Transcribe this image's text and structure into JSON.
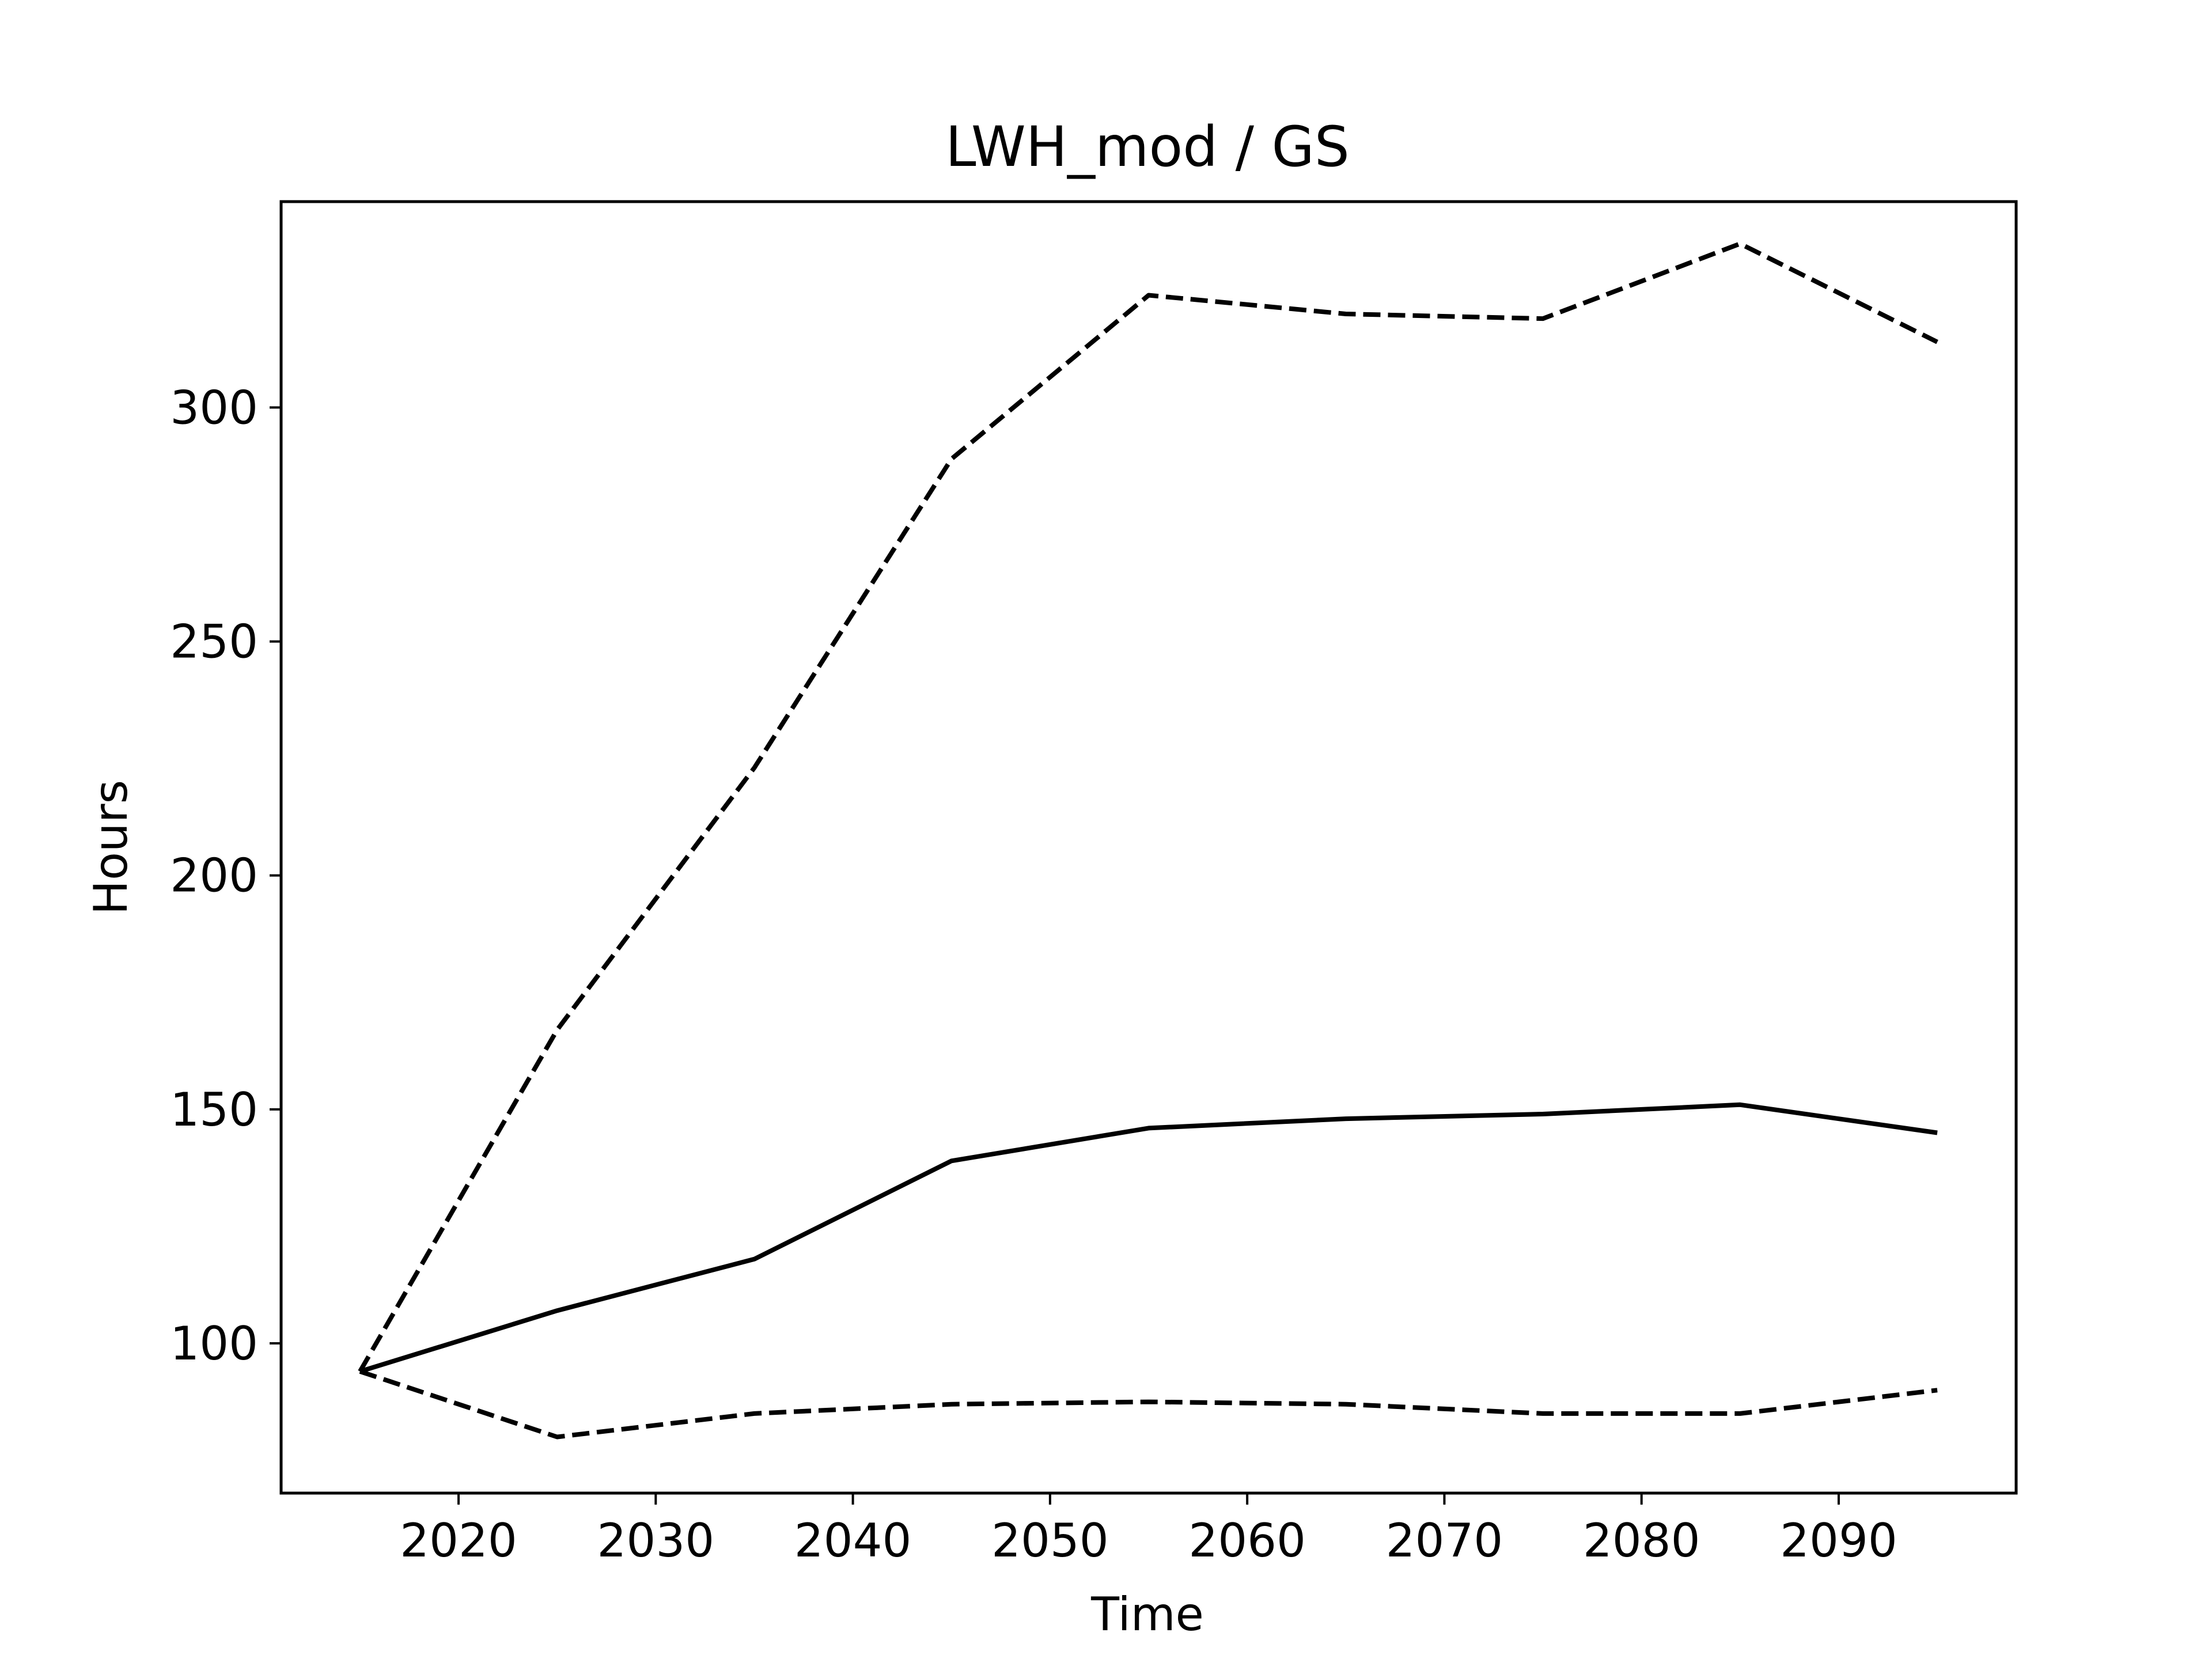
{
  "chart_data": {
    "type": "line",
    "title": "LWH_mod / GS",
    "xlabel": "Time",
    "ylabel": "Hours",
    "xlim": [
      2011,
      2099
    ],
    "ylim": [
      68,
      344
    ],
    "xticks": [
      2020,
      2030,
      2040,
      2050,
      2060,
      2070,
      2080,
      2090
    ],
    "yticks": [
      100,
      150,
      200,
      250,
      300
    ],
    "grid": false,
    "legend": false,
    "x": [
      2015,
      2025,
      2035,
      2045,
      2055,
      2065,
      2075,
      2085,
      2095
    ],
    "series": [
      {
        "style": "solid",
        "color": "#000000",
        "values": [
          94,
          107,
          118,
          139,
          146,
          148,
          149,
          151,
          145
        ]
      },
      {
        "style": "dashed",
        "color": "#000000",
        "values": [
          94,
          167,
          223,
          289,
          324,
          320,
          319,
          335,
          314
        ]
      },
      {
        "style": "dashed",
        "color": "#000000",
        "values": [
          94,
          80,
          85,
          87,
          87.5,
          87,
          85,
          85,
          90
        ]
      }
    ]
  }
}
